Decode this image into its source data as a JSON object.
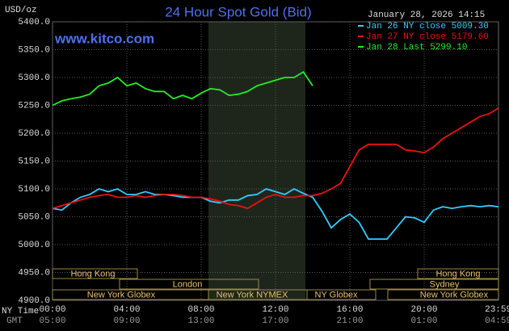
{
  "chart_data": {
    "type": "line",
    "title": "24 Hour Spot Gold (Bid)",
    "subtitle": "January 28, 2026 14:15",
    "y_unit": "USD/oz",
    "watermark": "www.kitco.com",
    "x_label": "NY Time",
    "x2_label": "GMT",
    "x": [
      0,
      0.5,
      1,
      1.5,
      2,
      2.5,
      3,
      3.5,
      4,
      4.5,
      5,
      5.5,
      6,
      6.5,
      7,
      7.5,
      8,
      8.5,
      9,
      9.5,
      10,
      10.5,
      11,
      11.5,
      12,
      12.5,
      13,
      13.5,
      14,
      14.5,
      15,
      15.5,
      16,
      16.5,
      17,
      17.5,
      18,
      18.5,
      19,
      19.5,
      20,
      20.5,
      21,
      21.5,
      22,
      22.5,
      23,
      23.5,
      24
    ],
    "series": [
      {
        "name": "Jan 26 NY close 5009.30",
        "color": "#33ccff",
        "values": [
          5065,
          5062,
          5075,
          5085,
          5090,
          5100,
          5095,
          5100,
          5090,
          5090,
          5095,
          5090,
          5090,
          5088,
          5085,
          5085,
          5085,
          5078,
          5075,
          5080,
          5080,
          5088,
          5090,
          5100,
          5095,
          5090,
          5100,
          5092,
          5085,
          5060,
          5030,
          5045,
          5055,
          5040,
          5010,
          5010,
          5010,
          5030,
          5050,
          5048,
          5040,
          5062,
          5068,
          5065,
          5068,
          5070,
          5068,
          5070,
          5068
        ]
      },
      {
        "name": "Jan 27 NY close 5179.60",
        "color": "#ee1111",
        "values": [
          5065,
          5070,
          5075,
          5080,
          5085,
          5088,
          5090,
          5085,
          5085,
          5088,
          5085,
          5088,
          5090,
          5090,
          5088,
          5085,
          5085,
          5082,
          5078,
          5072,
          5070,
          5065,
          5075,
          5085,
          5090,
          5085,
          5085,
          5088,
          5088,
          5092,
          5100,
          5110,
          5140,
          5170,
          5180,
          5180,
          5180,
          5180,
          5170,
          5168,
          5165,
          5175,
          5190,
          5200,
          5210,
          5220,
          5230,
          5235,
          5245
        ]
      },
      {
        "name": "Jan 28 Last 5299.10",
        "color": "#22ee22",
        "values": [
          5250,
          5258,
          5262,
          5265,
          5270,
          5285,
          5290,
          5300,
          5285,
          5290,
          5280,
          5275,
          5275,
          5262,
          5268,
          5262,
          5272,
          5280,
          5278,
          5268,
          5270,
          5275,
          5285,
          5290,
          5295,
          5300,
          5300,
          5310,
          5285,
          null,
          null,
          null,
          null,
          null,
          null,
          null,
          null,
          null,
          null,
          null,
          null,
          null,
          null,
          null,
          null,
          null,
          null,
          null,
          null
        ]
      }
    ],
    "xlim": [
      0,
      24
    ],
    "xticks": [
      {
        "value": 0,
        "label": "00:00"
      },
      {
        "value": 4,
        "label": "04:00"
      },
      {
        "value": 8,
        "label": "08:00"
      },
      {
        "value": 12,
        "label": "12:00"
      },
      {
        "value": 16,
        "label": "16:00"
      },
      {
        "value": 20,
        "label": "20:00"
      },
      {
        "value": 23.9833,
        "label": "23:59"
      }
    ],
    "x2ticklabels": [
      "05:00",
      "09:00",
      "13:00",
      "17:00",
      "21:00",
      "01:00",
      "04:59"
    ],
    "ylim": [
      4900,
      5400
    ],
    "yticks": [
      {
        "value": 4900,
        "label": "4900.0"
      },
      {
        "value": 4950,
        "label": "4950.0"
      },
      {
        "value": 5000,
        "label": "5000.0"
      },
      {
        "value": 5050,
        "label": "5050.0"
      },
      {
        "value": 5100,
        "label": "5100.0"
      },
      {
        "value": 5150,
        "label": "5150.0"
      },
      {
        "value": 5200,
        "label": "5200.0"
      },
      {
        "value": 5250,
        "label": "5250.0"
      },
      {
        "value": 5300,
        "label": "5300.0"
      },
      {
        "value": 5350,
        "label": "5350.0"
      },
      {
        "value": 5400,
        "label": "5400.0"
      }
    ],
    "grid": true,
    "sessions": [
      "Hong Kong",
      "Hong Kong",
      "London",
      "Sydney",
      "New York Globex",
      "New York NYMEX",
      "NY Globex",
      "New York Globex"
    ]
  }
}
